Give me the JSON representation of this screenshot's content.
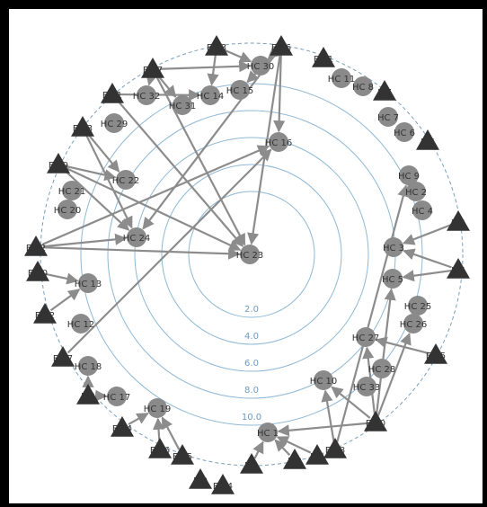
{
  "diagram": {
    "ring_labels": [
      "10.0",
      "8.0",
      "6.0",
      "4.0",
      "2.0"
    ],
    "colors": {
      "ring": "#8fb8d6",
      "ring_label": "#6f9cc0",
      "outer_ring": "#7aa0b8",
      "node_circle": "#8a8a8a",
      "node_triangle": "#333333",
      "edge": "#8c8c8c",
      "label": "#333333"
    },
    "nodes": [
      {
        "id": "E13",
        "label": "E 13",
        "shape": "triangle"
      },
      {
        "id": "E26",
        "label": "E 26",
        "shape": "triangle"
      },
      {
        "id": "E27",
        "label": "E 27",
        "shape": "triangle"
      },
      {
        "id": "E11",
        "label": "E 11",
        "shape": "triangle"
      },
      {
        "id": "E21",
        "label": "E 21",
        "shape": "triangle"
      },
      {
        "id": "E7",
        "label": "E 7",
        "shape": "triangle"
      },
      {
        "id": "E23",
        "label": "E 23",
        "shape": "triangle"
      },
      {
        "id": "E6",
        "label": "E 6",
        "shape": "triangle"
      },
      {
        "id": "E19",
        "label": "E 19",
        "shape": "triangle"
      },
      {
        "id": "E4",
        "label": "E 4",
        "shape": "triangle"
      },
      {
        "id": "E22",
        "label": "E 22",
        "shape": "triangle"
      },
      {
        "id": "E5",
        "label": "E 5",
        "shape": "triangle"
      },
      {
        "id": "E10",
        "label": "E 10",
        "shape": "triangle"
      },
      {
        "id": "E12",
        "label": "E 12",
        "shape": "triangle"
      },
      {
        "id": "E17",
        "label": "E 17",
        "shape": "triangle"
      },
      {
        "id": "E25",
        "label": "E 25",
        "shape": "triangle"
      },
      {
        "id": "E9",
        "label": "E 9",
        "shape": "triangle"
      },
      {
        "id": "E20",
        "label": "E 20",
        "shape": "triangle"
      },
      {
        "id": "E14",
        "label": "E 14",
        "shape": "triangle"
      },
      {
        "id": "E16",
        "label": "E 16",
        "shape": "triangle"
      },
      {
        "id": "E18",
        "label": "E 18",
        "shape": "triangle"
      },
      {
        "id": "E15",
        "label": "E 15",
        "shape": "triangle"
      },
      {
        "id": "E1",
        "label": "E 1",
        "shape": "triangle"
      },
      {
        "id": "E3",
        "label": "E 3",
        "shape": "triangle"
      },
      {
        "id": "E2",
        "label": "E 2",
        "shape": "triangle"
      },
      {
        "id": "E8",
        "label": "E 8",
        "shape": "triangle"
      },
      {
        "id": "E24",
        "label": "E 24",
        "shape": "triangle"
      },
      {
        "id": "HC30",
        "label": "HC 30",
        "shape": "circle"
      },
      {
        "id": "HC11",
        "label": "HC 11",
        "shape": "circle"
      },
      {
        "id": "HC8",
        "label": "HC 8",
        "shape": "circle"
      },
      {
        "id": "HC32",
        "label": "HC 32",
        "shape": "circle"
      },
      {
        "id": "HC14",
        "label": "HC 14",
        "shape": "circle"
      },
      {
        "id": "HC15",
        "label": "HC 15",
        "shape": "circle"
      },
      {
        "id": "HC31",
        "label": "HC 31",
        "shape": "circle"
      },
      {
        "id": "HC7",
        "label": "HC 7",
        "shape": "circle"
      },
      {
        "id": "HC29",
        "label": "HC 29",
        "shape": "circle"
      },
      {
        "id": "HC6",
        "label": "HC 6",
        "shape": "circle"
      },
      {
        "id": "HC16",
        "label": "HC 16",
        "shape": "circle"
      },
      {
        "id": "HC9",
        "label": "HC 9",
        "shape": "circle"
      },
      {
        "id": "HC22",
        "label": "HC 22",
        "shape": "circle"
      },
      {
        "id": "HC21",
        "label": "HC 21",
        "shape": "circle"
      },
      {
        "id": "HC2",
        "label": "HC 2",
        "shape": "circle"
      },
      {
        "id": "HC20",
        "label": "HC 20",
        "shape": "circle"
      },
      {
        "id": "HC4",
        "label": "HC 4",
        "shape": "circle"
      },
      {
        "id": "HC24",
        "label": "HC 24",
        "shape": "circle"
      },
      {
        "id": "HC3",
        "label": "HC 3",
        "shape": "circle"
      },
      {
        "id": "HC23",
        "label": "HC 23",
        "shape": "circle"
      },
      {
        "id": "HC5",
        "label": "HC 5",
        "shape": "circle"
      },
      {
        "id": "HC13",
        "label": "HC 13",
        "shape": "circle"
      },
      {
        "id": "HC25",
        "label": "HC 25",
        "shape": "circle"
      },
      {
        "id": "HC26",
        "label": "HC 26",
        "shape": "circle"
      },
      {
        "id": "HC12",
        "label": "HC 12",
        "shape": "circle"
      },
      {
        "id": "HC27",
        "label": "HC 27",
        "shape": "circle"
      },
      {
        "id": "HC18",
        "label": "HC 18",
        "shape": "circle"
      },
      {
        "id": "HC28",
        "label": "HC 28",
        "shape": "circle"
      },
      {
        "id": "HC10",
        "label": "HC 10",
        "shape": "circle"
      },
      {
        "id": "HC33",
        "label": "HC 33",
        "shape": "circle"
      },
      {
        "id": "HC17",
        "label": "HC 17",
        "shape": "circle"
      },
      {
        "id": "HC19",
        "label": "HC 19",
        "shape": "circle"
      },
      {
        "id": "HC1",
        "label": "HC 1",
        "shape": "circle"
      }
    ],
    "edges": [
      [
        "E13",
        "HC14"
      ],
      [
        "E13",
        "HC30"
      ],
      [
        "E26",
        "HC16"
      ],
      [
        "E26",
        "HC23"
      ],
      [
        "E26",
        "HC15"
      ],
      [
        "E26",
        "HC24"
      ],
      [
        "E26",
        "HC30"
      ],
      [
        "E27",
        "HC30"
      ],
      [
        "E27",
        "HC31"
      ],
      [
        "E27",
        "HC23"
      ],
      [
        "E27",
        "HC32"
      ],
      [
        "E21",
        "HC23"
      ],
      [
        "E21",
        "HC14"
      ],
      [
        "E23",
        "HC22"
      ],
      [
        "E23",
        "HC24"
      ],
      [
        "E19",
        "HC22"
      ],
      [
        "E19",
        "HC24"
      ],
      [
        "E19",
        "HC23"
      ],
      [
        "E22",
        "HC16"
      ],
      [
        "E22",
        "HC24"
      ],
      [
        "E22",
        "HC23"
      ],
      [
        "E10",
        "HC13"
      ],
      [
        "E12",
        "HC13"
      ],
      [
        "E17",
        "HC16"
      ],
      [
        "E9",
        "HC18"
      ],
      [
        "E9",
        "HC17"
      ],
      [
        "E14",
        "HC19"
      ],
      [
        "E16",
        "HC19"
      ],
      [
        "E15",
        "HC19"
      ],
      [
        "E1",
        "HC1"
      ],
      [
        "E3",
        "HC1"
      ],
      [
        "E2",
        "HC1"
      ],
      [
        "E18",
        "HC10"
      ],
      [
        "E18",
        "HC9"
      ],
      [
        "E20",
        "HC10"
      ],
      [
        "E20",
        "HC5"
      ],
      [
        "E20",
        "HC27"
      ],
      [
        "E20",
        "HC26"
      ],
      [
        "E20",
        "HC1"
      ],
      [
        "E25",
        "HC27"
      ],
      [
        "E4",
        "HC3"
      ],
      [
        "E5",
        "HC3"
      ],
      [
        "E5",
        "HC5"
      ]
    ]
  }
}
